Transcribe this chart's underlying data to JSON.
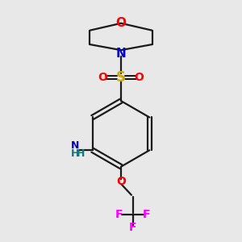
{
  "bg_color": "#e8e8e8",
  "line_color": "#1a1a1a",
  "bond_width": 1.6,
  "colors": {
    "O": "#ff0000",
    "N": "#0000cc",
    "S": "#ccaa00",
    "F": "#ff00ff",
    "NH2_N": "#0000cc",
    "NH2_H": "#008080",
    "C": "#1a1a1a"
  },
  "figsize": [
    3.0,
    3.0
  ],
  "dpi": 100
}
